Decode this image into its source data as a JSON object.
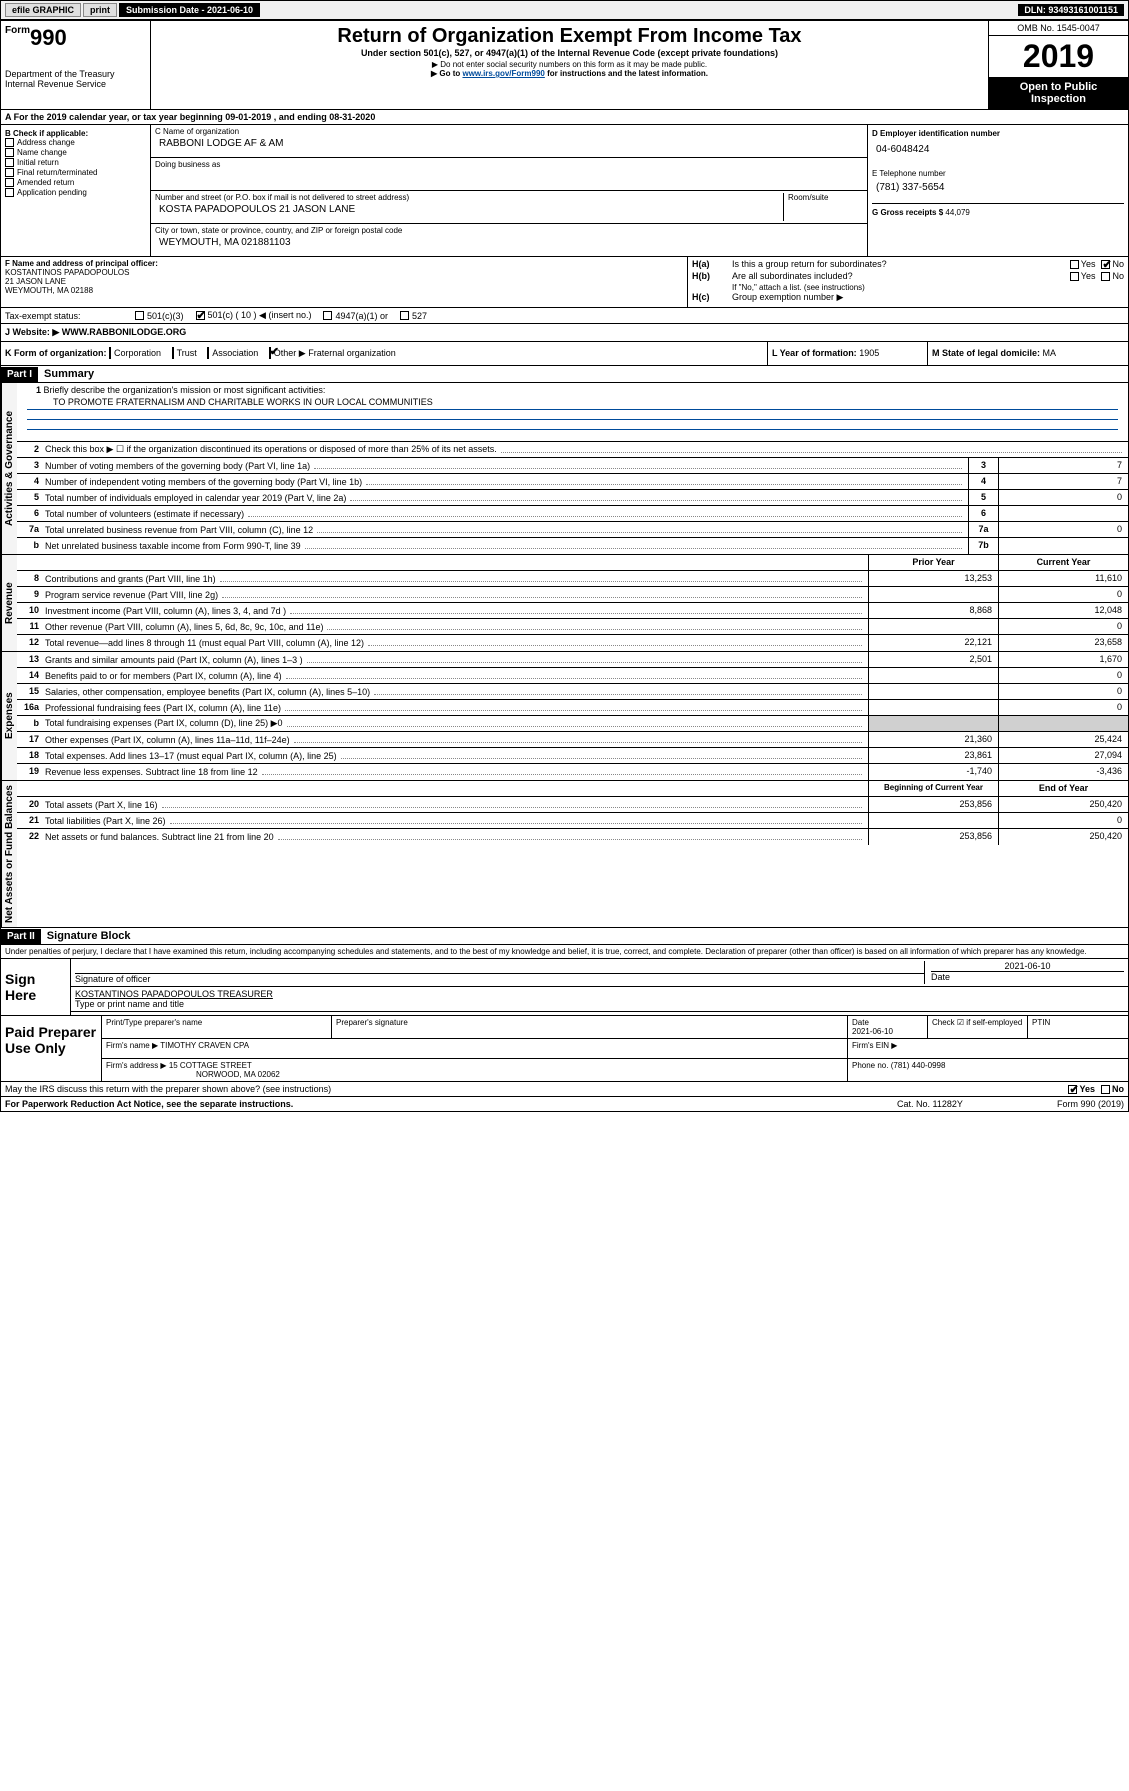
{
  "header_bar": {
    "efile": "efile GRAPHIC",
    "print": "print",
    "subdate": "Submission Date - 2021-06-10",
    "dln": "DLN: 93493161001151"
  },
  "form_box": {
    "form": "Form",
    "num": "990",
    "dept": "Department of the Treasury Internal Revenue Service"
  },
  "title_box": {
    "title": "Return of Organization Exempt From Income Tax",
    "subtitle": "Under section 501(c), 527, or 4947(a)(1) of the Internal Revenue Code (except private foundations)",
    "notice1": "▶ Do not enter social security numbers on this form as it may be made public.",
    "goto_pre": "▶ Go to ",
    "goto_link": "www.irs.gov/Form990",
    "goto_post": " for instructions and the latest information."
  },
  "right_box": {
    "omb": "OMB No. 1545-0047",
    "year": "2019",
    "open": "Open to Public Inspection"
  },
  "section_a": "A   For the 2019 calendar year, or tax year beginning 09-01-2019     , and ending 08-31-2020",
  "col_b": {
    "lbl": "B Check if applicable:",
    "items": [
      "Address change",
      "Name change",
      "Initial return",
      "Final return/terminated",
      "Amended return",
      "Application pending"
    ]
  },
  "col_c": {
    "name_lbl": "C Name of organization",
    "name_val": "RABBONI LODGE AF & AM",
    "dba_lbl": "Doing business as",
    "addr_lbl": "Number and street (or P.O. box if mail is not delivered to street address)",
    "addr_val": "KOSTA PAPADOPOULOS 21 JASON LANE",
    "room_lbl": "Room/suite",
    "city_lbl": "City or town, state or province, country, and ZIP or foreign postal code",
    "city_val": "WEYMOUTH, MA  021881103"
  },
  "col_d": {
    "ein_lbl": "D Employer identification number",
    "ein_val": "04-6048424",
    "tel_lbl": "E Telephone number",
    "tel_val": "(781) 337-5654",
    "gross_lbl": "G Gross receipts $",
    "gross_val": "44,079"
  },
  "row_f": {
    "f_lbl": "F Name and address of principal officer:",
    "f_name": "KOSTANTINOS PAPADOPOULOS",
    "f_addr1": "21 JASON LANE",
    "f_addr2": "WEYMOUTH, MA  02188",
    "ha_lbl": "Is this a group return for subordinates?",
    "hb_lbl": "Are all subordinates included?",
    "hb_note": "If \"No,\" attach a list. (see instructions)",
    "hc_lbl": "Group exemption number ▶"
  },
  "tax_status": {
    "lbl": "Tax-exempt status:",
    "c3": "501(c)(3)",
    "c": "501(c) ( 10 ) ◀ (insert no.)",
    "a1": "4947(a)(1) or",
    "s527": "527"
  },
  "website": {
    "lbl": "J   Website: ▶",
    "val": "WWW.RABBONILODGE.ORG"
  },
  "row_klm": {
    "k_lbl": "K Form of organization:",
    "k_opts": [
      "Corporation",
      "Trust",
      "Association",
      "Other ▶"
    ],
    "k_other": "Fraternal organization",
    "l_lbl": "L Year of formation:",
    "l_val": "1905",
    "m_lbl": "M State of legal domicile:",
    "m_val": "MA"
  },
  "parts": {
    "p1": "Part I",
    "p1_title": "Summary",
    "p2": "Part II",
    "p2_title": "Signature Block"
  },
  "mission": {
    "num": "1",
    "lbl": "Briefly describe the organization's mission or most significant activities:",
    "val": "TO PROMOTE FRATERNALISM AND CHARITABLE WORKS IN OUR LOCAL COMMUNITIES"
  },
  "vert": {
    "gov": "Activities & Governance",
    "rev": "Revenue",
    "exp": "Expenses",
    "net": "Net Assets or Fund Balances"
  },
  "gov_lines": [
    {
      "n": "2",
      "d": "Check this box ▶ ☐  if the organization discontinued its operations or disposed of more than 25% of its net assets."
    },
    {
      "n": "3",
      "d": "Number of voting members of the governing body (Part VI, line 1a)",
      "box": "3",
      "v": "7"
    },
    {
      "n": "4",
      "d": "Number of independent voting members of the governing body (Part VI, line 1b)",
      "box": "4",
      "v": "7"
    },
    {
      "n": "5",
      "d": "Total number of individuals employed in calendar year 2019 (Part V, line 2a)",
      "box": "5",
      "v": "0"
    },
    {
      "n": "6",
      "d": "Total number of volunteers (estimate if necessary)",
      "box": "6",
      "v": ""
    },
    {
      "n": "7a",
      "d": "Total unrelated business revenue from Part VIII, column (C), line 12",
      "box": "7a",
      "v": "0"
    },
    {
      "n": "b",
      "d": "Net unrelated business taxable income from Form 990-T, line 39",
      "box": "7b",
      "v": ""
    }
  ],
  "col_hdrs": {
    "prior": "Prior Year",
    "current": "Current Year"
  },
  "rev_lines": [
    {
      "n": "8",
      "d": "Contributions and grants (Part VIII, line 1h)",
      "p": "13,253",
      "c": "11,610"
    },
    {
      "n": "9",
      "d": "Program service revenue (Part VIII, line 2g)",
      "p": "",
      "c": "0"
    },
    {
      "n": "10",
      "d": "Investment income (Part VIII, column (A), lines 3, 4, and 7d )",
      "p": "8,868",
      "c": "12,048"
    },
    {
      "n": "11",
      "d": "Other revenue (Part VIII, column (A), lines 5, 6d, 8c, 9c, 10c, and 11e)",
      "p": "",
      "c": "0"
    },
    {
      "n": "12",
      "d": "Total revenue—add lines 8 through 11 (must equal Part VIII, column (A), line 12)",
      "p": "22,121",
      "c": "23,658"
    }
  ],
  "exp_lines": [
    {
      "n": "13",
      "d": "Grants and similar amounts paid (Part IX, column (A), lines 1–3 )",
      "p": "2,501",
      "c": "1,670"
    },
    {
      "n": "14",
      "d": "Benefits paid to or for members (Part IX, column (A), line 4)",
      "p": "",
      "c": "0"
    },
    {
      "n": "15",
      "d": "Salaries, other compensation, employee benefits (Part IX, column (A), lines 5–10)",
      "p": "",
      "c": "0"
    },
    {
      "n": "16a",
      "d": "Professional fundraising fees (Part IX, column (A), line 11e)",
      "p": "",
      "c": "0"
    },
    {
      "n": "b",
      "d": "Total fundraising expenses (Part IX, column (D), line 25) ▶0",
      "p": "",
      "c": "",
      "shade": true
    },
    {
      "n": "17",
      "d": "Other expenses (Part IX, column (A), lines 11a–11d, 11f–24e)",
      "p": "21,360",
      "c": "25,424"
    },
    {
      "n": "18",
      "d": "Total expenses. Add lines 13–17 (must equal Part IX, column (A), line 25)",
      "p": "23,861",
      "c": "27,094"
    },
    {
      "n": "19",
      "d": "Revenue less expenses. Subtract line 18 from line 12",
      "p": "-1,740",
      "c": "-3,436"
    }
  ],
  "net_hdrs": {
    "begin": "Beginning of Current Year",
    "end": "End of Year"
  },
  "net_lines": [
    {
      "n": "20",
      "d": "Total assets (Part X, line 16)",
      "p": "253,856",
      "c": "250,420"
    },
    {
      "n": "21",
      "d": "Total liabilities (Part X, line 26)",
      "p": "",
      "c": "0"
    },
    {
      "n": "22",
      "d": "Net assets or fund balances. Subtract line 21 from line 20",
      "p": "253,856",
      "c": "250,420"
    }
  ],
  "declare": "Under penalties of perjury, I declare that I have examined this return, including accompanying schedules and statements, and to the best of my knowledge and belief, it is true, correct, and complete. Declaration of preparer (other than officer) is based on all information of which preparer has any knowledge.",
  "sign": {
    "lbl": "Sign Here",
    "sig_lbl": "Signature of officer",
    "date_val": "2021-06-10",
    "date_lbl": "Date",
    "name_val": "KOSTANTINOS PAPADOPOULOS  TREASURER",
    "name_lbl": "Type or print name and title"
  },
  "paid": {
    "lbl": "Paid Preparer Use Only",
    "h1": "Print/Type preparer's name",
    "h2": "Preparer's signature",
    "h3": "Date",
    "h3v": "2021-06-10",
    "h4": "Check ☑ if self-employed",
    "h5": "PTIN",
    "firm_lbl": "Firm's name     ▶",
    "firm_val": "TIMOTHY CRAVEN CPA",
    "ein_lbl": "Firm's EIN ▶",
    "addr_lbl": "Firm's address ▶",
    "addr_val1": "15 COTTAGE STREET",
    "addr_val2": "NORWOOD, MA  02062",
    "phone_lbl": "Phone no.",
    "phone_val": "(781) 440-0998"
  },
  "discuss": {
    "q": "May the IRS discuss this return with the preparer shown above? (see instructions)",
    "yes": "Yes",
    "no": "No"
  },
  "footer": {
    "pra": "For Paperwork Reduction Act Notice, see the separate instructions.",
    "cat": "Cat. No. 11282Y",
    "form": "Form 990 (2019)"
  }
}
